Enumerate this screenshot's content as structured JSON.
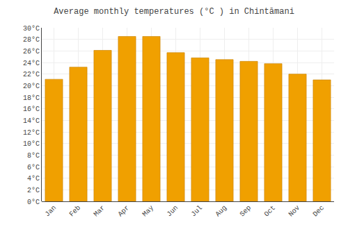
{
  "chart_data": {
    "type": "bar",
    "title": "Average monthly temperatures (°C ) in Chintāmani",
    "categories": [
      "Jan",
      "Feb",
      "Mar",
      "Apr",
      "May",
      "Jun",
      "Jul",
      "Aug",
      "Sep",
      "Oct",
      "Nov",
      "Dec"
    ],
    "values": [
      21.1,
      23.2,
      26.1,
      28.5,
      28.5,
      25.7,
      24.8,
      24.5,
      24.2,
      23.8,
      22.0,
      21.0
    ],
    "color": "#F0A000",
    "ylim": [
      0,
      30
    ],
    "yticks": [
      {
        "value": 0,
        "label": "0°C"
      },
      {
        "value": 2,
        "label": "2°C"
      },
      {
        "value": 4,
        "label": "4°C"
      },
      {
        "value": 6,
        "label": "6°C"
      },
      {
        "value": 8,
        "label": "8°C"
      },
      {
        "value": 10,
        "label": "10°C"
      },
      {
        "value": 12,
        "label": "12°C"
      },
      {
        "value": 14,
        "label": "14°C"
      },
      {
        "value": 16,
        "label": "16°C"
      },
      {
        "value": 18,
        "label": "18°C"
      },
      {
        "value": 20,
        "label": "20°C"
      },
      {
        "value": 22,
        "label": "22°C"
      },
      {
        "value": 24,
        "label": "24°C"
      },
      {
        "value": 26,
        "label": "26°C"
      },
      {
        "value": 28,
        "label": "28°C"
      },
      {
        "value": 30,
        "label": "30°C"
      }
    ],
    "grid": true
  }
}
